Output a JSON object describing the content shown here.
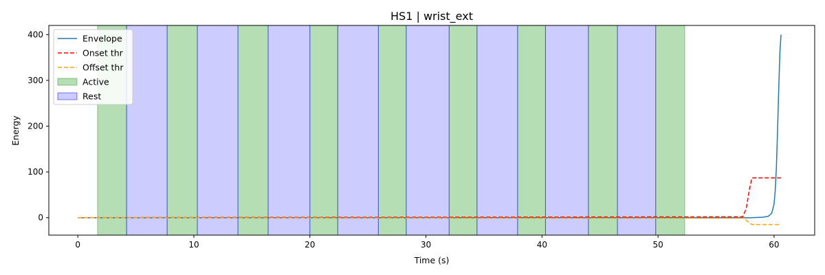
{
  "chart_data": {
    "type": "line",
    "title": "HS1 | wrist_ext",
    "xlabel": "Time (s)",
    "ylabel": "Energy",
    "xlim": [
      -2.5,
      63.5
    ],
    "ylim": [
      -38,
      420
    ],
    "xticks": [
      0,
      10,
      20,
      30,
      40,
      50,
      60
    ],
    "yticks": [
      0,
      100,
      200,
      300,
      400
    ],
    "grid": false,
    "legend_position": "top-left",
    "series": [
      {
        "name": "Envelope",
        "style": "solid",
        "color": "#1f77b4",
        "x": [
          0,
          57,
          58,
          59,
          59.5,
          59.8,
          60.0,
          60.1,
          60.2,
          60.3,
          60.4,
          60.5,
          60.6
        ],
        "y": [
          0,
          0,
          0,
          1,
          3,
          10,
          30,
          60,
          110,
          190,
          280,
          360,
          400
        ]
      },
      {
        "name": "Onset thr",
        "style": "dashed",
        "color": "#ff0000",
        "x": [
          0,
          57.3,
          57.6,
          57.9,
          58.1,
          60.6
        ],
        "y": [
          0,
          2,
          20,
          65,
          87,
          87
        ]
      },
      {
        "name": "Offset thr",
        "style": "dashed",
        "color": "#ffa500",
        "x": [
          0,
          57.4,
          57.8,
          58.1,
          60.6
        ],
        "y": [
          0,
          -1,
          -10,
          -15,
          -15
        ]
      }
    ],
    "bands": [
      {
        "name": "Active",
        "color": "#2ca02c",
        "opacity": 0.35,
        "ranges": [
          [
            1.7,
            4.2
          ],
          [
            7.7,
            10.3
          ],
          [
            13.8,
            16.4
          ],
          [
            20.0,
            22.4
          ],
          [
            25.9,
            28.3
          ],
          [
            32.0,
            34.4
          ],
          [
            37.9,
            40.3
          ],
          [
            44.0,
            46.5
          ],
          [
            49.8,
            52.3
          ]
        ]
      },
      {
        "name": "Rest",
        "color": "#0000ff",
        "opacity": 0.2,
        "ranges": [
          [
            4.2,
            7.7
          ],
          [
            10.3,
            13.8
          ],
          [
            16.4,
            20.0
          ],
          [
            22.4,
            25.9
          ],
          [
            28.3,
            32.0
          ],
          [
            34.4,
            37.9
          ],
          [
            40.3,
            44.0
          ],
          [
            46.5,
            49.8
          ]
        ]
      }
    ],
    "legend": [
      "Envelope",
      "Onset thr",
      "Offset thr",
      "Active",
      "Rest"
    ]
  }
}
